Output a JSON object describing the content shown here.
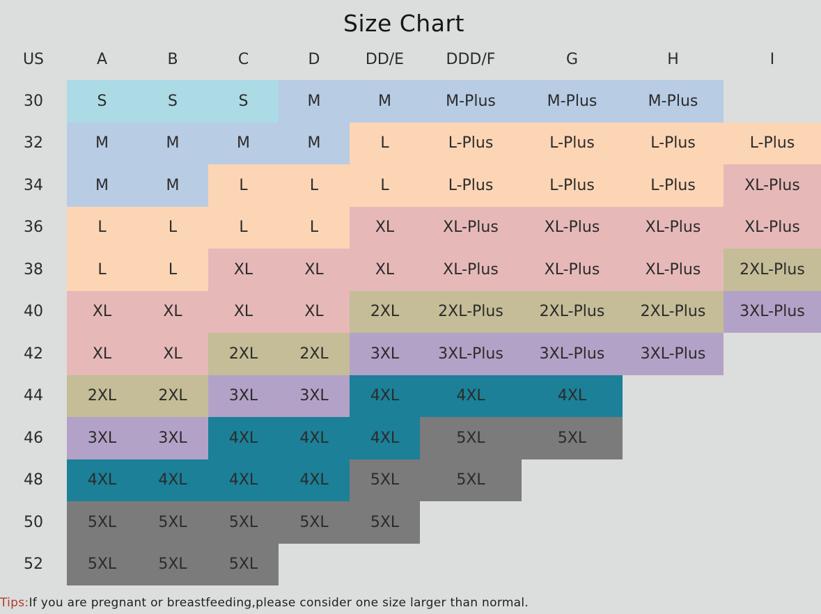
{
  "title": "Size Chart",
  "header_cells": [
    "US",
    "A",
    "B",
    "C",
    "D",
    "DD/E",
    "DDD/F",
    "G",
    "H",
    "I"
  ],
  "rows": [
    {
      "us": "30",
      "cells": [
        "S",
        "S",
        "S",
        "M",
        "M",
        "M-Plus",
        "M-Plus",
        "M-Plus",
        ""
      ]
    },
    {
      "us": "32",
      "cells": [
        "M",
        "M",
        "M",
        "M",
        "L",
        "L-Plus",
        "L-Plus",
        "L-Plus",
        "L-Plus"
      ]
    },
    {
      "us": "34",
      "cells": [
        "M",
        "M",
        "L",
        "L",
        "L",
        "L-Plus",
        "L-Plus",
        "L-Plus",
        "XL-Plus"
      ]
    },
    {
      "us": "36",
      "cells": [
        "L",
        "L",
        "L",
        "L",
        "XL",
        "XL-Plus",
        "XL-Plus",
        "XL-Plus",
        "XL-Plus"
      ]
    },
    {
      "us": "38",
      "cells": [
        "L",
        "L",
        "XL",
        "XL",
        "XL",
        "XL-Plus",
        "XL-Plus",
        "XL-Plus",
        "2XL-Plus"
      ]
    },
    {
      "us": "40",
      "cells": [
        "XL",
        "XL",
        "XL",
        "XL",
        "2XL",
        "2XL-Plus",
        "2XL-Plus",
        "2XL-Plus",
        "3XL-Plus"
      ]
    },
    {
      "us": "42",
      "cells": [
        "XL",
        "XL",
        "2XL",
        "2XL",
        "3XL",
        "3XL-Plus",
        "3XL-Plus",
        "3XL-Plus",
        ""
      ]
    },
    {
      "us": "44",
      "cells": [
        "2XL",
        "2XL",
        "3XL",
        "3XL",
        "4XL",
        "4XL",
        "4XL",
        "",
        ""
      ]
    },
    {
      "us": "46",
      "cells": [
        "3XL",
        "3XL",
        "4XL",
        "4XL",
        "4XL",
        "5XL",
        "5XL",
        "",
        ""
      ]
    },
    {
      "us": "48",
      "cells": [
        "4XL",
        "4XL",
        "4XL",
        "4XL",
        "5XL",
        "5XL",
        "",
        "",
        ""
      ]
    },
    {
      "us": "50",
      "cells": [
        "5XL",
        "5XL",
        "5XL",
        "5XL",
        "5XL",
        "",
        "",
        "",
        ""
      ]
    },
    {
      "us": "52",
      "cells": [
        "5XL",
        "5XL",
        "5XL",
        "",
        "",
        "",
        "",
        "",
        ""
      ]
    }
  ],
  "size_colors": {
    "S": "#acdbe6",
    "M": "#b8cce4",
    "L": "#fcd5b5",
    "XL": "#e6b9b8",
    "2XL": "#c4bd97",
    "3XL": "#b3a2c7",
    "4XL": "#1b8098",
    "5XL": "#7b7b7b"
  },
  "tips": {
    "label": "Tips:",
    "text": "If you are pregnant or breastfeeding,please consider one size larger than normal."
  }
}
